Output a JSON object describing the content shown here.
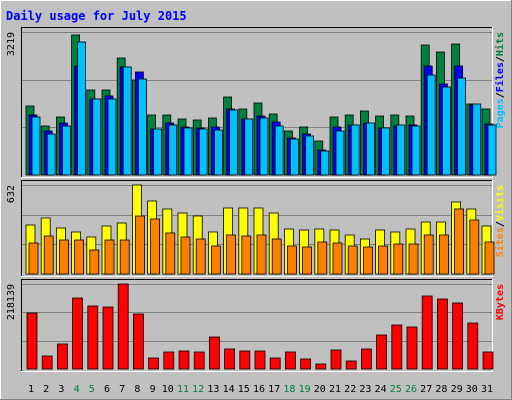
{
  "chart_data": {
    "type": "bar",
    "title": "Daily usage for July 2015",
    "categories": [
      "1",
      "2",
      "3",
      "4",
      "5",
      "6",
      "7",
      "8",
      "9",
      "10",
      "11",
      "12",
      "13",
      "14",
      "15",
      "16",
      "17",
      "18",
      "19",
      "20",
      "21",
      "22",
      "23",
      "24",
      "25",
      "26",
      "27",
      "28",
      "29",
      "30",
      "31"
    ],
    "weekend_days": [
      "4",
      "5",
      "11",
      "12",
      "18",
      "19",
      "25",
      "26"
    ],
    "panels": [
      {
        "id": "top",
        "max_label": "3219",
        "ylim": [
          0,
          3219
        ],
        "legend": [
          "Pages",
          "Files",
          "Hits"
        ],
        "series": [
          {
            "name": "Hits",
            "color": "#008040",
            "values": [
              1560,
              1100,
              1300,
              3160,
              1920,
              1920,
              2630,
              2130,
              1340,
              1350,
              1250,
              1240,
              1290,
              1760,
              1480,
              1620,
              1380,
              1000,
              1080,
              760,
              1300,
              1350,
              1450,
              1320,
              1350,
              1330,
              2930,
              2780,
              2940,
              1600,
              1490
            ]
          },
          {
            "name": "Files",
            "color": "#0000ff",
            "values": [
              1350,
              980,
              1170,
              2450,
              1720,
              1770,
              2420,
              2310,
              1030,
              1170,
              1090,
              1060,
              1070,
              1490,
              1270,
              1330,
              1200,
              840,
              920,
              570,
              1080,
              1130,
              1160,
              1050,
              1100,
              1120,
              2450,
              2040,
              2450,
              1570,
              1150
            ]
          },
          {
            "name": "Pages",
            "color": "#00c0ff",
            "values": [
              1300,
              930,
              1110,
              3000,
              1700,
              1720,
              2430,
              2170,
              1030,
              1130,
              1060,
              1030,
              1020,
              1470,
              1250,
              1290,
              1110,
              810,
              880,
              540,
              1000,
              1130,
              1170,
              1050,
              1120,
              1110,
              2260,
              1980,
              2180,
              1600,
              1120
            ]
          }
        ]
      },
      {
        "id": "middle",
        "max_label": "632",
        "ylim": [
          0,
          632
        ],
        "legend": [
          "Sites",
          "Visits"
        ],
        "series": [
          {
            "name": "Visits",
            "color": "#ffff00",
            "values": [
              350,
              400,
              330,
              300,
              260,
              340,
              360,
              632,
              520,
              460,
              430,
              410,
              300,
              470,
              470,
              470,
              430,
              320,
              310,
              320,
              310,
              280,
              250,
              310,
              300,
              320,
              370,
              370,
              510,
              460,
              340
            ]
          },
          {
            "name": "Sites",
            "color": "#ff8000",
            "values": [
              220,
              270,
              240,
              240,
              170,
              240,
              240,
              410,
              390,
              290,
              260,
              250,
              200,
              280,
              270,
              280,
              250,
              200,
              190,
              230,
              220,
              200,
              190,
              200,
              210,
              210,
              280,
              280,
              460,
              380,
              230
            ]
          }
        ]
      },
      {
        "id": "bottom",
        "max_label": "218139",
        "ylim": [
          0,
          218139
        ],
        "legend": [
          "KBytes"
        ],
        "series": [
          {
            "name": "KBytes",
            "color": "#ff0000",
            "values": [
              144000,
              33000,
              64000,
              183000,
              162000,
              159000,
              218139,
              142000,
              27000,
              44000,
              45000,
              43000,
              82000,
              51000,
              45000,
              45000,
              27000,
              44000,
              26000,
              12000,
              49000,
              20000,
              51000,
              88000,
              112000,
              109000,
              188000,
              180000,
              170000,
              117000,
              44000
            ]
          }
        ]
      }
    ],
    "grid": true,
    "background": "#c0c0c0",
    "frame_background": "#c0c0c0",
    "title_color": "#0000ff",
    "label_color": "#000000",
    "weekend_label_color": "#008040"
  }
}
